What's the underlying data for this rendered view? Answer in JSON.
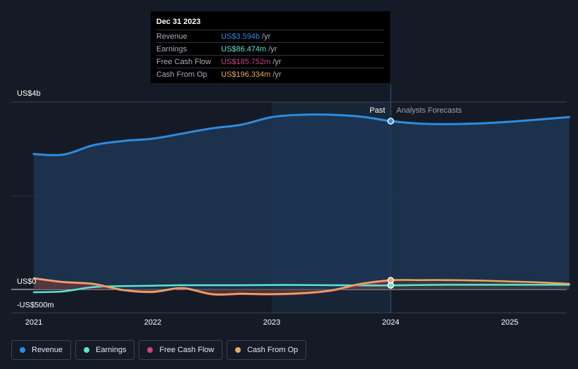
{
  "chart_data": {
    "type": "area",
    "xlabel": "",
    "ylabel": "",
    "ylim": [
      -500,
      4000
    ],
    "x_ticks": [
      2021,
      2022,
      2023,
      2024,
      2025
    ],
    "x_tick_labels": [
      "2021",
      "2022",
      "2023",
      "2024",
      "2025"
    ],
    "y_tick_labels": {
      "top": "US$4b",
      "zero": "US$0",
      "bottom": "-US$500m"
    },
    "y_tick_values": {
      "top": 4000,
      "zero": 0,
      "bottom": -500
    },
    "divider_x": 2024.0,
    "past_label": "Past",
    "forecast_label": "Analysts Forecasts",
    "series": [
      {
        "name": "Revenue",
        "color": "#2e8ce0",
        "points": [
          [
            2021.0,
            2890
          ],
          [
            2021.25,
            2880
          ],
          [
            2021.5,
            3080
          ],
          [
            2021.75,
            3170
          ],
          [
            2022.0,
            3220
          ],
          [
            2022.25,
            3330
          ],
          [
            2022.5,
            3440
          ],
          [
            2022.75,
            3520
          ],
          [
            2023.0,
            3680
          ],
          [
            2023.25,
            3730
          ],
          [
            2023.5,
            3730
          ],
          [
            2023.75,
            3690
          ],
          [
            2024.0,
            3594
          ],
          [
            2024.25,
            3540
          ],
          [
            2024.5,
            3530
          ],
          [
            2024.75,
            3545
          ],
          [
            2025.0,
            3580
          ],
          [
            2025.25,
            3630
          ],
          [
            2025.5,
            3680
          ]
        ]
      },
      {
        "name": "Earnings",
        "color": "#5ee6cf",
        "points": [
          [
            2021.0,
            -60
          ],
          [
            2021.25,
            -40
          ],
          [
            2021.5,
            50
          ],
          [
            2021.75,
            70
          ],
          [
            2022.0,
            80
          ],
          [
            2022.25,
            90
          ],
          [
            2022.5,
            90
          ],
          [
            2022.75,
            90
          ],
          [
            2023.0,
            95
          ],
          [
            2023.25,
            95
          ],
          [
            2023.5,
            90
          ],
          [
            2023.75,
            85
          ],
          [
            2024.0,
            86.474
          ],
          [
            2024.25,
            95
          ],
          [
            2024.5,
            100
          ],
          [
            2024.75,
            100
          ],
          [
            2025.0,
            100
          ],
          [
            2025.25,
            100
          ],
          [
            2025.5,
            100
          ]
        ]
      },
      {
        "name": "Free Cash Flow",
        "color": "#c9467f",
        "points": [
          [
            2021.0,
            230
          ],
          [
            2021.25,
            150
          ],
          [
            2021.5,
            110
          ],
          [
            2021.75,
            -20
          ],
          [
            2022.0,
            -60
          ],
          [
            2022.25,
            20
          ],
          [
            2022.5,
            -110
          ],
          [
            2022.75,
            -100
          ],
          [
            2023.0,
            -110
          ],
          [
            2023.25,
            -90
          ],
          [
            2023.5,
            -30
          ],
          [
            2023.75,
            110
          ],
          [
            2024.0,
            185.752
          ]
        ]
      },
      {
        "name": "Cash From Op",
        "color": "#eda65f",
        "points": [
          [
            2021.0,
            240
          ],
          [
            2021.25,
            160
          ],
          [
            2021.5,
            120
          ],
          [
            2021.75,
            -10
          ],
          [
            2022.0,
            -50
          ],
          [
            2022.25,
            30
          ],
          [
            2022.5,
            -100
          ],
          [
            2022.75,
            -90
          ],
          [
            2023.0,
            -100
          ],
          [
            2023.25,
            -80
          ],
          [
            2023.5,
            -20
          ],
          [
            2023.75,
            120
          ],
          [
            2024.0,
            196.334
          ],
          [
            2024.25,
            200
          ],
          [
            2024.5,
            200
          ],
          [
            2024.75,
            190
          ],
          [
            2025.0,
            170
          ],
          [
            2025.25,
            150
          ],
          [
            2025.5,
            120
          ]
        ]
      }
    ]
  },
  "tooltip": {
    "date": "Dec 31 2023",
    "rows": [
      {
        "label": "Revenue",
        "value": "US$3.594b",
        "unit": "/yr",
        "color": "#2e8ce0"
      },
      {
        "label": "Earnings",
        "value": "US$86.474m",
        "unit": "/yr",
        "color": "#5ee6cf"
      },
      {
        "label": "Free Cash Flow",
        "value": "US$185.752m",
        "unit": "/yr",
        "color": "#c9467f"
      },
      {
        "label": "Cash From Op",
        "value": "US$196.334m",
        "unit": "/yr",
        "color": "#eda65f"
      }
    ]
  },
  "legend": [
    {
      "label": "Revenue",
      "color": "#2e8ce0"
    },
    {
      "label": "Earnings",
      "color": "#5ee6cf"
    },
    {
      "label": "Free Cash Flow",
      "color": "#c9467f"
    },
    {
      "label": "Cash From Op",
      "color": "#eda65f"
    }
  ]
}
